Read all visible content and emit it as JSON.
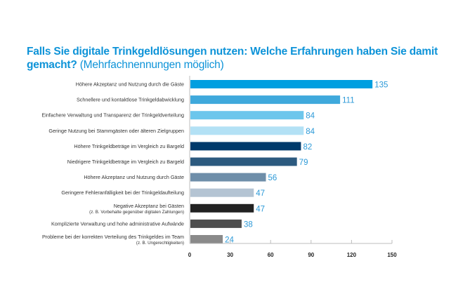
{
  "chart_data": {
    "type": "bar",
    "orientation": "horizontal",
    "title": "Falls Sie digitale Trinkgeldlösungen nutzen: Welche Erfahrungen haben Sie damit gemacht?",
    "title_bold": "Falls Sie digitale Trinkgeldlösungen nutzen: Welche Erfahrungen haben Sie damit gemacht?",
    "title_normal": "(Mehrfachnennungen möglich)",
    "xlabel": "",
    "ylabel": "",
    "xlim": [
      0,
      150
    ],
    "xticks": [
      0,
      30,
      60,
      90,
      120,
      150
    ],
    "xtick_labels": [
      "0",
      "30",
      "60",
      "90",
      "120",
      "150"
    ],
    "grid": false,
    "legend": "none",
    "categories": [
      {
        "label": "Höhere Akzeptanz und Nutzung durch die Gäste",
        "sublabel": "",
        "value": 135,
        "color": "#009fe0"
      },
      {
        "label": "Schnellere und kontaktlose Trinkgeldabwicklung",
        "sublabel": "",
        "value": 111,
        "color": "#3fa9dc"
      },
      {
        "label": "Einfachere Verwaltung und Transparenz der Trinkgeldverteilung",
        "sublabel": "",
        "value": 84,
        "color": "#6cc6ec"
      },
      {
        "label": "Geringe Nutzung bei Stammgästen oder älteren Zielgruppen",
        "sublabel": "",
        "value": 84,
        "color": "#b3e1f5"
      },
      {
        "label": "Höhere Trinkgeldbeträge im Vergleich zu Bargeld",
        "sublabel": "",
        "value": 82,
        "color": "#003a6b"
      },
      {
        "label": "Niedrigere Trinkgeldbeträge im Vergleich zu Bargeld",
        "sublabel": "",
        "value": 79,
        "color": "#2c5a7f"
      },
      {
        "label": "Höhere Akzeptanz und Nutzung durch Gäste",
        "sublabel": "",
        "value": 56,
        "color": "#6e8ea9"
      },
      {
        "label": "Geringere Fehleranfälligkeit bei der Trinkgeldaufteilung",
        "sublabel": "",
        "value": 47,
        "color": "#b4c4d3"
      },
      {
        "label": "Negative Akzeptanz bei Gästen",
        "sublabel": "(z. B. Vorbehalte gegenüber digitalen Zahlungen)",
        "value": 47,
        "color": "#222222"
      },
      {
        "label": "Komplizierte Verwaltung und hohe administrative Aufwände",
        "sublabel": "",
        "value": 38,
        "color": "#4f4f4f"
      },
      {
        "label": "Probleme bei der korrekten Verteilung des Trinkgeldes im Team",
        "sublabel": "(z. B. Ungerechtigkeiten)",
        "value": 24,
        "color": "#8a8a8a"
      }
    ],
    "value_label_color": "#2d9ad8"
  }
}
